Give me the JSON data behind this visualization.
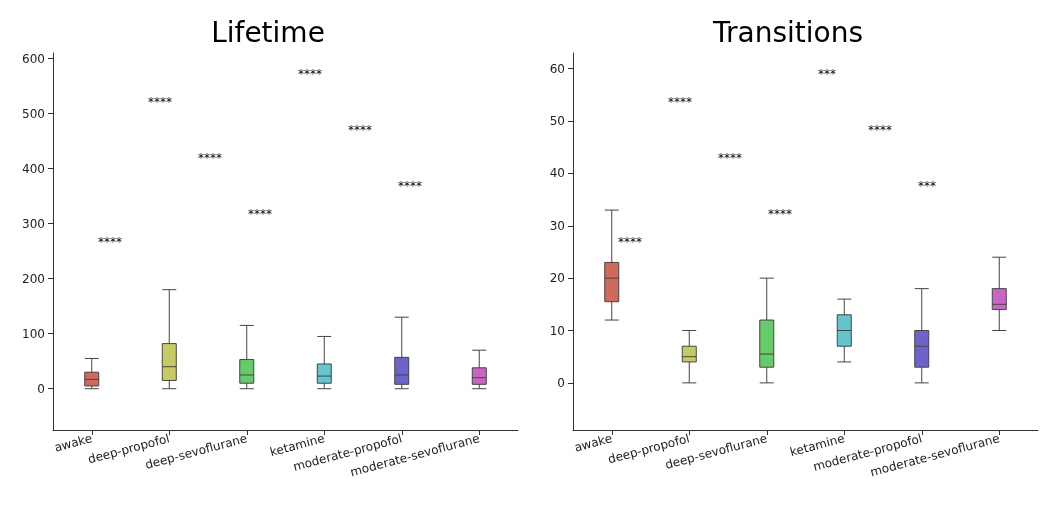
{
  "chart_data": [
    {
      "type": "box",
      "title": "Lifetime",
      "categories": [
        "awake",
        "deep-propofol",
        "deep-sevoflurane",
        "ketamine",
        "moderate-propofol",
        "moderate-sevoflurane"
      ],
      "colors": [
        "#d1685c",
        "#c7cc62",
        "#66cc6a",
        "#63c6cc",
        "#6c64cc",
        "#cc63c6"
      ],
      "boxes": [
        {
          "low": 0,
          "q1": 5,
          "median": 17,
          "q3": 30,
          "high": 55
        },
        {
          "low": 0,
          "q1": 15,
          "median": 40,
          "q3": 82,
          "high": 180
        },
        {
          "low": 0,
          "q1": 10,
          "median": 25,
          "q3": 53,
          "high": 115
        },
        {
          "low": 0,
          "q1": 10,
          "median": 23,
          "q3": 45,
          "high": 95
        },
        {
          "low": 0,
          "q1": 8,
          "median": 25,
          "q3": 57,
          "high": 130
        },
        {
          "low": 0,
          "q1": 8,
          "median": 20,
          "q3": 38,
          "high": 70
        }
      ],
      "ylim": [
        -75,
        610
      ],
      "yticks": [
        0,
        100,
        200,
        300,
        400,
        500,
        600
      ],
      "grid": false,
      "annotations": [
        "****",
        "****",
        "****",
        "****",
        "****",
        "****",
        "****"
      ]
    },
    {
      "type": "box",
      "title": "Transitions",
      "categories": [
        "awake",
        "deep-propofol",
        "deep-sevoflurane",
        "ketamine",
        "moderate-propofol",
        "moderate-sevoflurane"
      ],
      "colors": [
        "#d1685c",
        "#c7cc62",
        "#66cc6a",
        "#63c6cc",
        "#6c64cc",
        "#cc63c6"
      ],
      "boxes": [
        {
          "low": 12,
          "q1": 15.5,
          "median": 20,
          "q3": 23,
          "high": 33
        },
        {
          "low": 0,
          "q1": 4,
          "median": 5,
          "q3": 7,
          "high": 10
        },
        {
          "low": 0,
          "q1": 3,
          "median": 5.5,
          "q3": 12,
          "high": 20
        },
        {
          "low": 4,
          "q1": 7,
          "median": 10,
          "q3": 13,
          "high": 16
        },
        {
          "low": 0,
          "q1": 3,
          "median": 7,
          "q3": 10,
          "high": 18
        },
        {
          "low": 10,
          "q1": 14,
          "median": 15,
          "q3": 18,
          "high": 24
        }
      ],
      "ylim": [
        -9,
        63
      ],
      "yticks": [
        0,
        10,
        20,
        30,
        40,
        50,
        60
      ],
      "grid": false,
      "annotations": [
        "****",
        "****",
        "***",
        "****",
        "****",
        "****",
        "***"
      ]
    }
  ]
}
